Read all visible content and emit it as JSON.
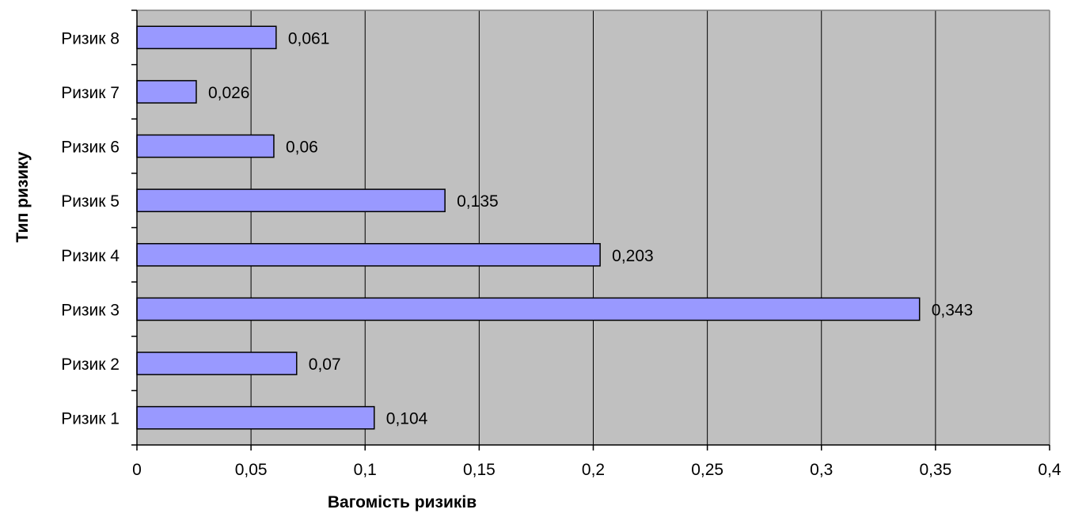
{
  "chart_data": {
    "type": "bar",
    "orientation": "horizontal",
    "title": "",
    "xlabel": "Вагомість ризиків",
    "ylabel": "Тип ризику",
    "categories": [
      "Ризик 1",
      "Ризик 2",
      "Ризик 3",
      "Ризик 4",
      "Ризик 5",
      "Ризик 6",
      "Ризик 7",
      "Ризик 8"
    ],
    "values": [
      0.104,
      0.07,
      0.343,
      0.203,
      0.135,
      0.06,
      0.026,
      0.061
    ],
    "value_labels": [
      "0,104",
      "0,07",
      "0,343",
      "0,203",
      "0,135",
      "0,06",
      "0,026",
      "0,061"
    ],
    "xlim": [
      0,
      0.4
    ],
    "x_ticks": [
      0,
      0.05,
      0.1,
      0.15,
      0.2,
      0.25,
      0.3,
      0.35,
      0.4
    ],
    "x_tick_labels": [
      "0",
      "0,05",
      "0,1",
      "0,15",
      "0,2",
      "0,25",
      "0,3",
      "0,35",
      "0,4"
    ],
    "grid": "vertical",
    "legend": "none",
    "colors": {
      "bar_fill": "#9999FF",
      "bar_stroke": "#000000",
      "plot_background": "#C0C0C0",
      "gridline": "#000000"
    }
  }
}
